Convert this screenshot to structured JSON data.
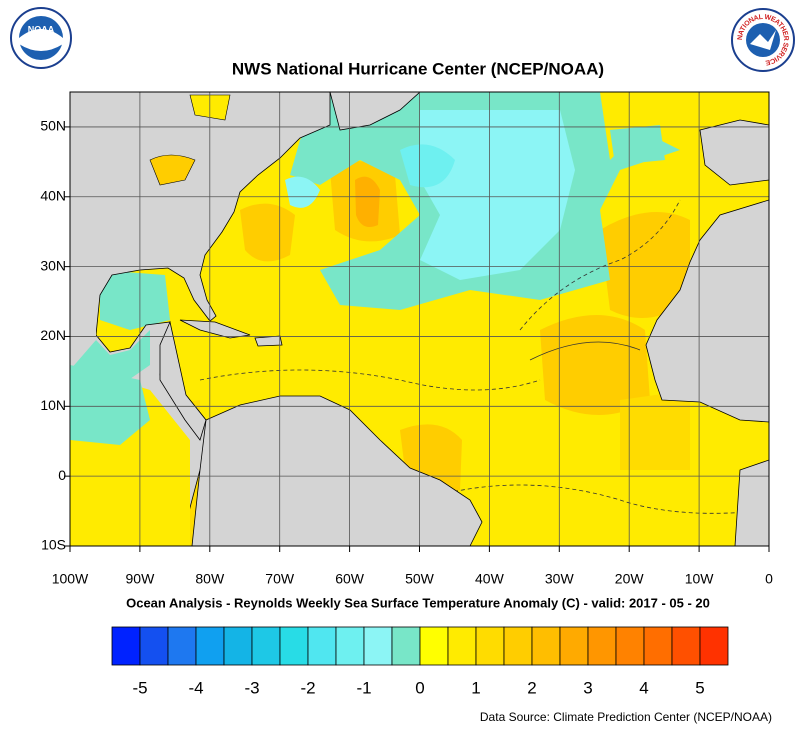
{
  "header": {
    "title": "NWS National Hurricane Center (NCEP/NOAA)",
    "left_logo": "NOAA",
    "right_logo": "NATIONAL WEATHER SERVICE"
  },
  "map": {
    "lon_range": [
      -100,
      0
    ],
    "lat_range": [
      -10,
      55
    ],
    "lon_ticks": [
      {
        "value": -100,
        "label": "100W"
      },
      {
        "value": -90,
        "label": "90W"
      },
      {
        "value": -80,
        "label": "80W"
      },
      {
        "value": -70,
        "label": "70W"
      },
      {
        "value": -60,
        "label": "60W"
      },
      {
        "value": -50,
        "label": "50W"
      },
      {
        "value": -40,
        "label": "40W"
      },
      {
        "value": -30,
        "label": "30W"
      },
      {
        "value": -20,
        "label": "20W"
      },
      {
        "value": -10,
        "label": "10W"
      },
      0
    ],
    "lat_ticks": [
      {
        "value": -10,
        "label": "10S"
      },
      0,
      {
        "value": 10,
        "label": "10N"
      },
      {
        "value": 20,
        "label": "20N"
      },
      {
        "value": 30,
        "label": "30N"
      },
      {
        "value": 40,
        "label": "40N"
      },
      {
        "value": 50,
        "label": "50N"
      }
    ],
    "subtitle": "Ocean Analysis - Reynolds Weekly Sea Surface Temperature Anomaly (C) - valid: 2017 - 05 - 20"
  },
  "colorbar": {
    "range": [
      -5.5,
      5.5
    ],
    "ticks": [
      -5,
      -4,
      -3,
      -2,
      -1,
      0,
      1,
      2,
      3,
      4,
      5
    ],
    "colors": [
      "#0022ff",
      "#1450f0",
      "#1e78f0",
      "#10a0f0",
      "#14b4e6",
      "#1ec8e6",
      "#28dce6",
      "#50e6f0",
      "#6ef0f0",
      "#8cf5f5",
      "#78e6c8",
      "#ffff00",
      "#ffeb00",
      "#ffdc00",
      "#ffcd00",
      "#ffbe00",
      "#ffaa00",
      "#ff9600",
      "#ff8200",
      "#ff6e00",
      "#ff5000",
      "#ff3200"
    ]
  },
  "footer": {
    "source": "Data Source: Climate Prediction Center (NCEP/NOAA)"
  }
}
